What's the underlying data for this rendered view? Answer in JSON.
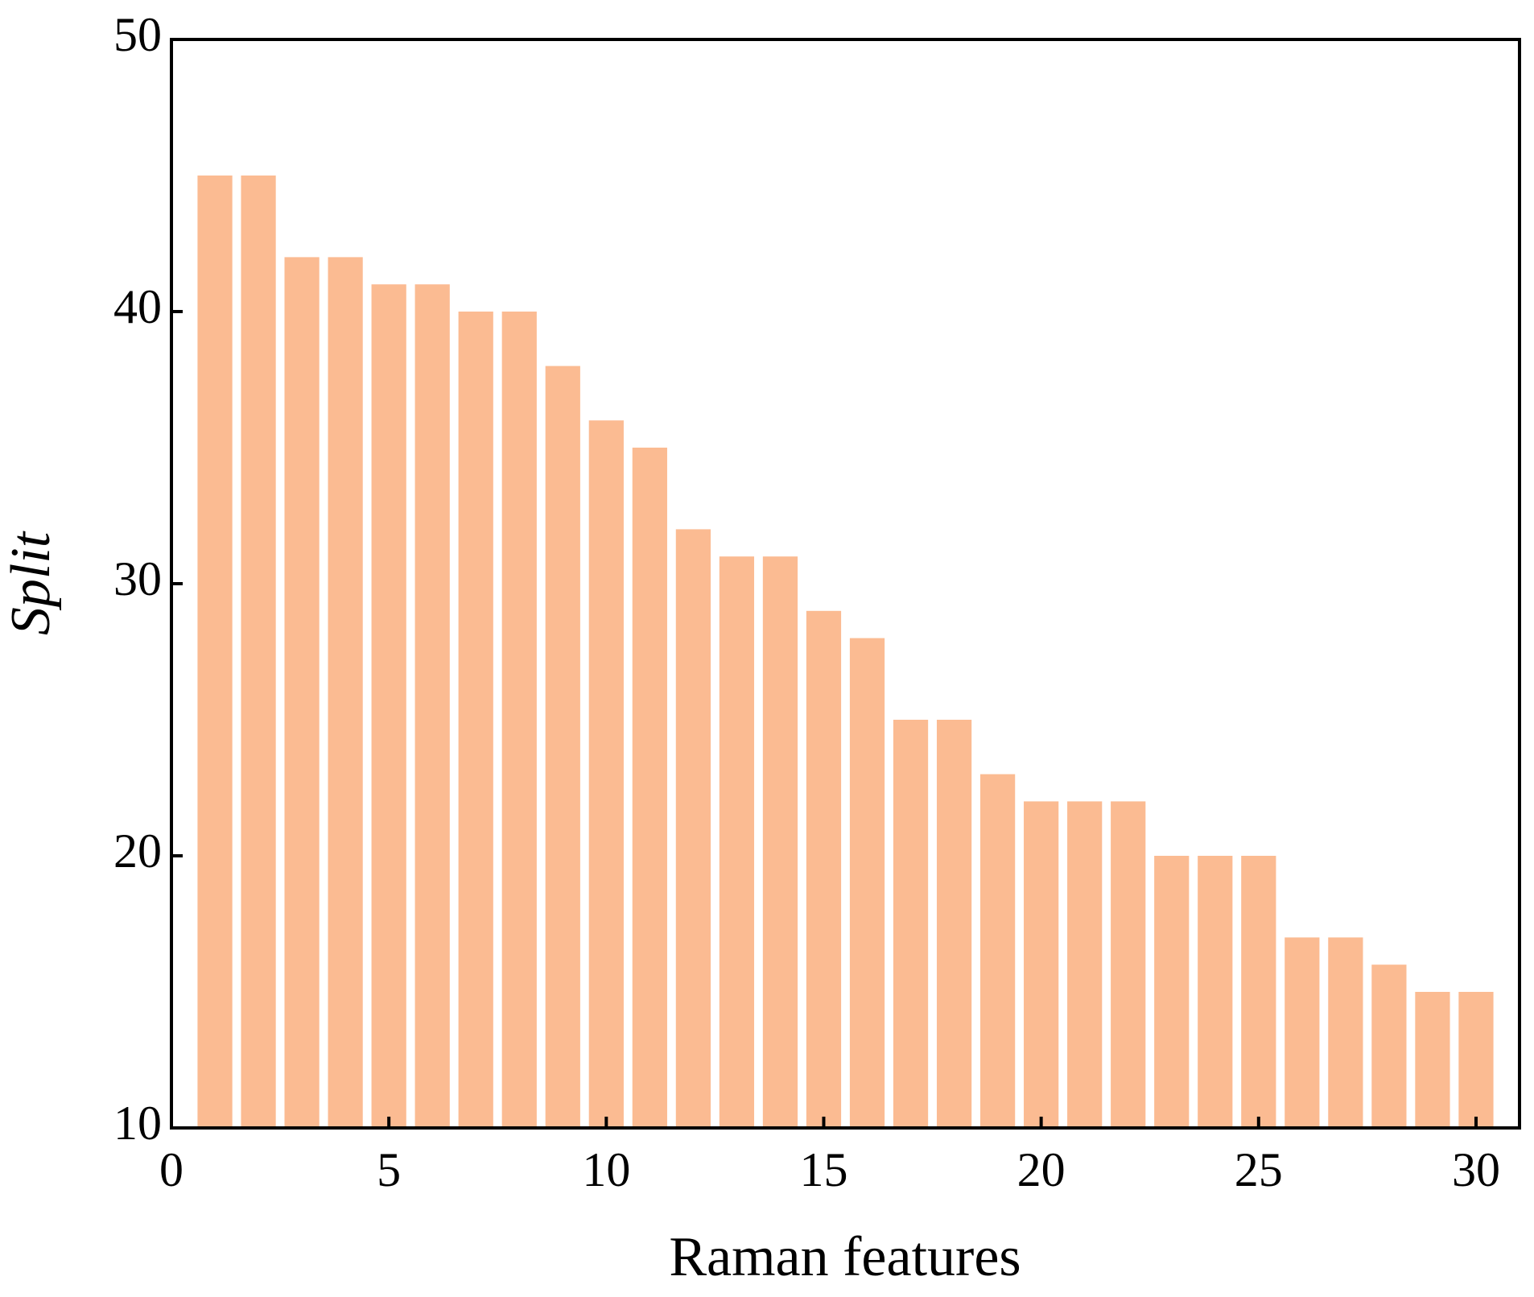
{
  "chart_data": {
    "type": "bar",
    "x_label": "Raman features",
    "y_label": "Split",
    "x": [
      1,
      2,
      3,
      4,
      5,
      6,
      7,
      8,
      9,
      10,
      11,
      12,
      13,
      14,
      15,
      16,
      17,
      18,
      19,
      20,
      21,
      22,
      23,
      24,
      25,
      26,
      27,
      28,
      29,
      30
    ],
    "values": [
      45,
      45,
      42,
      42,
      41,
      41,
      40,
      40,
      38,
      36,
      35,
      32,
      31,
      31,
      29,
      28,
      25,
      25,
      23,
      22,
      22,
      22,
      20,
      20,
      20,
      17,
      17,
      16,
      15,
      15
    ],
    "color": "#fbbb92",
    "xlim": [
      0,
      31
    ],
    "xticks": [
      0,
      5,
      10,
      15,
      20,
      25,
      30
    ],
    "ylim": [
      10,
      50
    ],
    "yticks": [
      10,
      20,
      30,
      40,
      50
    ]
  }
}
